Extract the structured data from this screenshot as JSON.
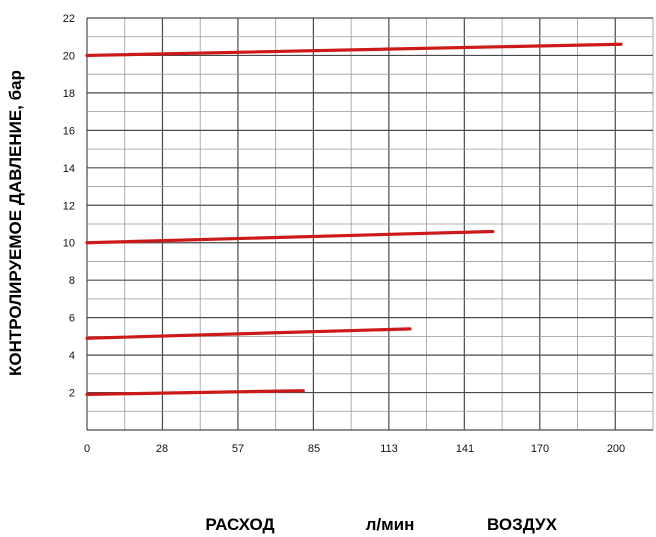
{
  "chart_data": {
    "type": "line",
    "ylabel": "КОНТРОЛИРУЕМОЕ ДАВЛЕНИЕ, бар",
    "xlabel_parts": [
      "РАСХОД",
      "л/мин",
      "ВОЗДУХ"
    ],
    "x_ticks": [
      "0",
      "28",
      "57",
      "85",
      "113",
      "141",
      "170",
      "200"
    ],
    "y_ticks": [
      "2",
      "4",
      "6",
      "8",
      "10",
      "12",
      "14",
      "16",
      "18",
      "20",
      "22"
    ],
    "xlim": [
      0,
      212
    ],
    "ylim": [
      0,
      22
    ],
    "grid": true,
    "line_color": "#cc1a1a",
    "series": [
      {
        "x": [
          0,
          200
        ],
        "y": [
          20.0,
          20.6
        ]
      },
      {
        "x": [
          0,
          152
        ],
        "y": [
          10.0,
          10.6
        ]
      },
      {
        "x": [
          0,
          121
        ],
        "y": [
          4.9,
          5.4
        ]
      },
      {
        "x": [
          0,
          81
        ],
        "y": [
          1.9,
          2.1
        ]
      }
    ]
  }
}
